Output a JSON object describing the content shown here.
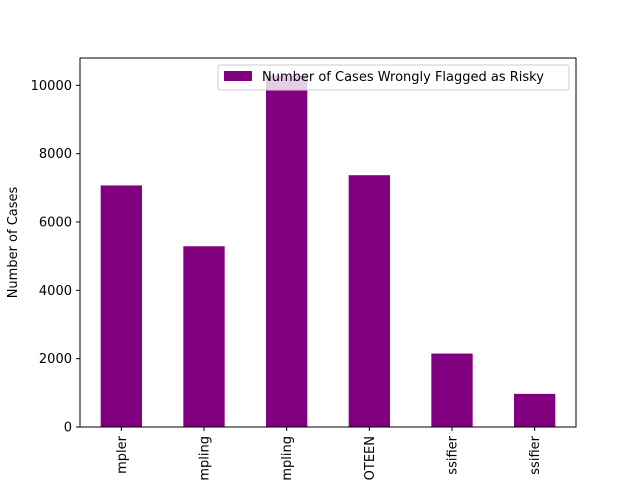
{
  "chart_data": {
    "type": "bar",
    "categories": [
      "mpler",
      "mpling",
      "mpling",
      "OTEEN",
      "ssifier",
      "ssifier"
    ],
    "series": [
      {
        "name": "Number of Cases Wrongly Flagged as Risky",
        "values": [
          7070,
          5290,
          10290,
          7370,
          2150,
          970
        ]
      }
    ],
    "title": "",
    "xlabel": "",
    "ylabel": "Number of Cases",
    "ylim": [
      0,
      10800
    ],
    "yticks": [
      0,
      2000,
      4000,
      6000,
      8000,
      10000
    ],
    "grid": false,
    "legend_position": "top-right",
    "bar_color": "#800080"
  }
}
